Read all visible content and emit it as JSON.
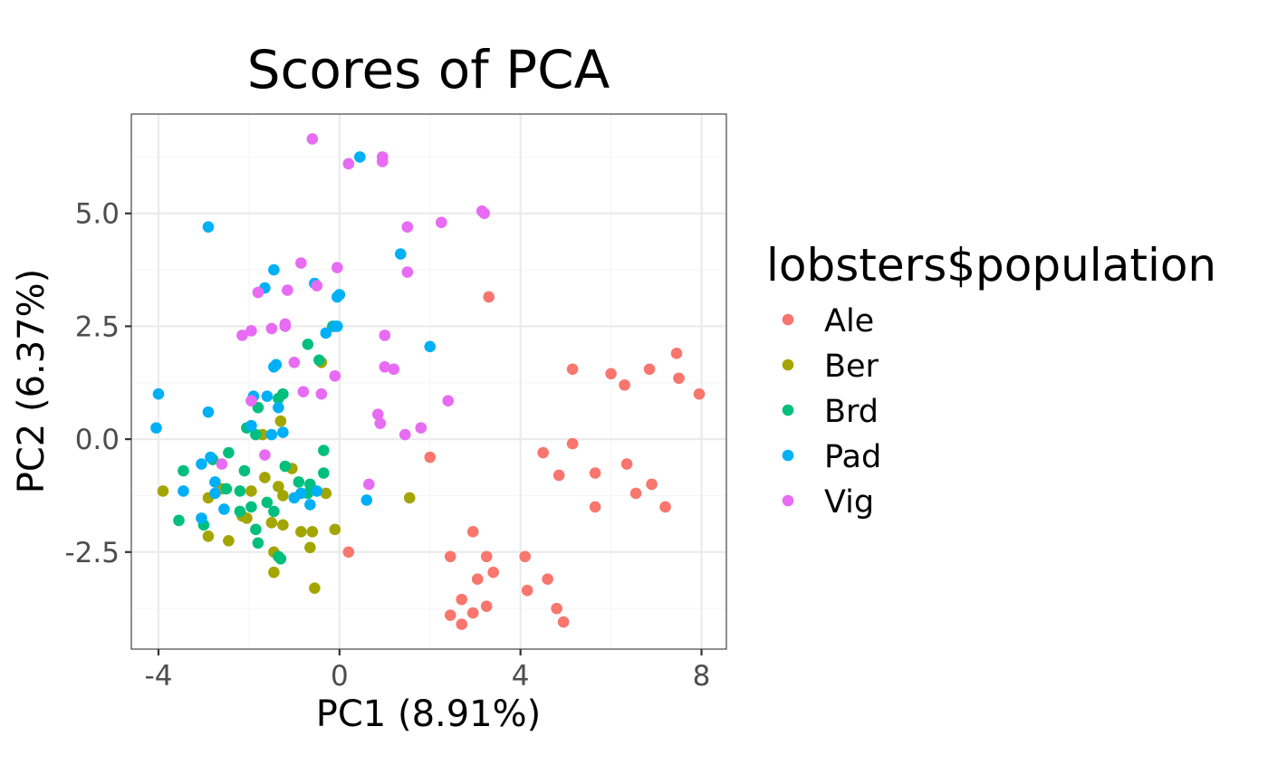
{
  "chart_data": {
    "type": "scatter",
    "title": "Scores of PCA",
    "xlabel": "PC1 (8.91%)",
    "ylabel": "PC2 (6.37%)",
    "xlim": [
      -4.6,
      8.55
    ],
    "ylim": [
      -4.65,
      7.2
    ],
    "xticks": [
      -4,
      0,
      4,
      8
    ],
    "xtick_labels": [
      "-4",
      "0",
      "4",
      "8"
    ],
    "yticks": [
      -2.5,
      0,
      2.5,
      5
    ],
    "ytick_labels": [
      "-2.5",
      "0.0",
      "2.5",
      "5.0"
    ],
    "grid": true,
    "legend": {
      "title": "lobsters$population",
      "placement": "right",
      "entries": [
        {
          "label": "Ale",
          "color": "#F8766D"
        },
        {
          "label": "Ber",
          "color": "#A3A500"
        },
        {
          "label": "Brd",
          "color": "#00BF7D"
        },
        {
          "label": "Pad",
          "color": "#00B0F6"
        },
        {
          "label": "Vig",
          "color": "#E76BF3"
        }
      ]
    },
    "series": [
      {
        "name": "Ale",
        "color": "#F8766D",
        "points": [
          [
            7.45,
            1.9
          ],
          [
            7.5,
            1.35
          ],
          [
            7.95,
            1.0
          ],
          [
            6.85,
            1.55
          ],
          [
            6.0,
            1.45
          ],
          [
            6.3,
            1.2
          ],
          [
            5.15,
            1.55
          ],
          [
            3.3,
            3.15
          ],
          [
            4.5,
            -0.3
          ],
          [
            5.15,
            -0.1
          ],
          [
            4.85,
            -0.8
          ],
          [
            5.65,
            -0.75
          ],
          [
            6.35,
            -0.55
          ],
          [
            6.9,
            -1.0
          ],
          [
            6.55,
            -1.2
          ],
          [
            7.2,
            -1.5
          ],
          [
            5.65,
            -1.5
          ],
          [
            2.0,
            -0.4
          ],
          [
            0.2,
            -2.5
          ],
          [
            2.95,
            -2.05
          ],
          [
            2.45,
            -2.6
          ],
          [
            3.25,
            -2.6
          ],
          [
            4.1,
            -2.6
          ],
          [
            3.05,
            -3.1
          ],
          [
            3.4,
            -2.95
          ],
          [
            4.6,
            -3.1
          ],
          [
            4.15,
            -3.35
          ],
          [
            2.7,
            -3.55
          ],
          [
            3.25,
            -3.7
          ],
          [
            4.8,
            -3.75
          ],
          [
            2.45,
            -3.9
          ],
          [
            2.95,
            -3.85
          ],
          [
            2.7,
            -4.1
          ],
          [
            4.95,
            -4.05
          ]
        ]
      },
      {
        "name": "Ber",
        "color": "#A3A500",
        "points": [
          [
            -3.9,
            -1.15
          ],
          [
            -2.9,
            -1.3
          ],
          [
            -2.6,
            -1.1
          ],
          [
            -2.9,
            -2.15
          ],
          [
            -2.45,
            -2.25
          ],
          [
            -2.15,
            -1.7
          ],
          [
            -2.05,
            -1.75
          ],
          [
            -1.95,
            -1.15
          ],
          [
            -1.65,
            -0.85
          ],
          [
            -1.5,
            -1.85
          ],
          [
            -1.35,
            -1.05
          ],
          [
            -1.25,
            -1.25
          ],
          [
            -1.25,
            -1.9
          ],
          [
            -1.05,
            -0.65
          ],
          [
            -1.45,
            -2.5
          ],
          [
            -1.45,
            -2.95
          ],
          [
            -0.85,
            -2.05
          ],
          [
            -0.6,
            -2.05
          ],
          [
            -0.65,
            -2.4
          ],
          [
            -0.3,
            -1.2
          ],
          [
            -0.1,
            -2.0
          ],
          [
            -0.55,
            -3.3
          ],
          [
            1.55,
            -1.3
          ],
          [
            -1.3,
            0.4
          ],
          [
            -0.4,
            1.7
          ],
          [
            -1.7,
            0.1
          ]
        ]
      },
      {
        "name": "Brd",
        "color": "#00BF7D",
        "points": [
          [
            -3.45,
            -0.7
          ],
          [
            -3.55,
            -1.8
          ],
          [
            -3.0,
            -1.9
          ],
          [
            -2.8,
            -0.45
          ],
          [
            -2.45,
            -0.3
          ],
          [
            -2.1,
            -0.7
          ],
          [
            -2.05,
            0.25
          ],
          [
            -1.85,
            0.1
          ],
          [
            -1.8,
            0.7
          ],
          [
            -2.2,
            -1.15
          ],
          [
            -2.2,
            -1.6
          ],
          [
            -1.95,
            -1.5
          ],
          [
            -1.85,
            -2.0
          ],
          [
            -1.8,
            -2.3
          ],
          [
            -1.6,
            -1.4
          ],
          [
            -1.45,
            -1.6
          ],
          [
            -1.2,
            -0.6
          ],
          [
            -1.35,
            -2.6
          ],
          [
            -1.3,
            -2.65
          ],
          [
            -0.9,
            -0.95
          ],
          [
            -0.7,
            -1.2
          ],
          [
            -0.65,
            -1.0
          ],
          [
            -0.35,
            -0.25
          ],
          [
            -0.35,
            -0.75
          ],
          [
            -0.7,
            2.1
          ],
          [
            -0.45,
            1.75
          ],
          [
            -0.15,
            2.5
          ],
          [
            -1.25,
            1.0
          ],
          [
            -1.35,
            0.9
          ],
          [
            -2.5,
            -1.1
          ]
        ]
      },
      {
        "name": "Pad",
        "color": "#00B0F6",
        "points": [
          [
            -4.0,
            1.0
          ],
          [
            -4.05,
            0.25
          ],
          [
            -2.9,
            4.7
          ],
          [
            -2.9,
            0.6
          ],
          [
            -3.45,
            -1.15
          ],
          [
            -3.05,
            -0.55
          ],
          [
            -2.85,
            -0.4
          ],
          [
            -2.75,
            -0.95
          ],
          [
            -2.75,
            -1.2
          ],
          [
            -3.05,
            -1.75
          ],
          [
            -2.55,
            -1.55
          ],
          [
            -1.9,
            0.95
          ],
          [
            -1.6,
            0.95
          ],
          [
            -1.95,
            0.3
          ],
          [
            -1.5,
            0.1
          ],
          [
            -1.35,
            0.7
          ],
          [
            -1.25,
            0.15
          ],
          [
            -1.45,
            1.6
          ],
          [
            -1.4,
            1.65
          ],
          [
            -1.65,
            3.35
          ],
          [
            -1.45,
            3.75
          ],
          [
            -0.55,
            3.45
          ],
          [
            -0.05,
            3.15
          ],
          [
            0.0,
            3.2
          ],
          [
            -0.3,
            2.35
          ],
          [
            -0.1,
            2.5
          ],
          [
            -0.05,
            2.5
          ],
          [
            0.45,
            6.25
          ],
          [
            1.35,
            4.1
          ],
          [
            2.0,
            2.05
          ],
          [
            0.6,
            -1.35
          ],
          [
            -0.65,
            -1.45
          ],
          [
            -0.5,
            -1.15
          ],
          [
            -1.0,
            -1.3
          ],
          [
            -0.85,
            -1.2
          ]
        ]
      },
      {
        "name": "Vig",
        "color": "#E76BF3",
        "points": [
          [
            -0.6,
            6.65
          ],
          [
            0.95,
            6.25
          ],
          [
            0.95,
            6.15
          ],
          [
            0.2,
            6.1
          ],
          [
            3.15,
            5.05
          ],
          [
            3.2,
            5.0
          ],
          [
            2.25,
            4.8
          ],
          [
            1.5,
            4.7
          ],
          [
            1.5,
            3.7
          ],
          [
            -0.85,
            3.9
          ],
          [
            -0.05,
            3.8
          ],
          [
            -0.5,
            3.4
          ],
          [
            -1.8,
            3.25
          ],
          [
            -1.15,
            3.3
          ],
          [
            -1.2,
            2.55
          ],
          [
            -1.2,
            2.5
          ],
          [
            -1.5,
            2.45
          ],
          [
            -1.95,
            2.4
          ],
          [
            -2.15,
            2.3
          ],
          [
            1.0,
            2.3
          ],
          [
            1.0,
            1.6
          ],
          [
            1.2,
            1.55
          ],
          [
            -1.0,
            1.7
          ],
          [
            -0.8,
            1.05
          ],
          [
            -0.4,
            1.0
          ],
          [
            -0.1,
            1.4
          ],
          [
            2.4,
            0.85
          ],
          [
            0.85,
            0.55
          ],
          [
            0.9,
            0.35
          ],
          [
            1.8,
            0.25
          ],
          [
            1.45,
            0.1
          ],
          [
            -1.65,
            -0.35
          ],
          [
            0.65,
            -1.0
          ],
          [
            -1.95,
            0.85
          ],
          [
            -2.6,
            -0.55
          ]
        ]
      }
    ]
  }
}
